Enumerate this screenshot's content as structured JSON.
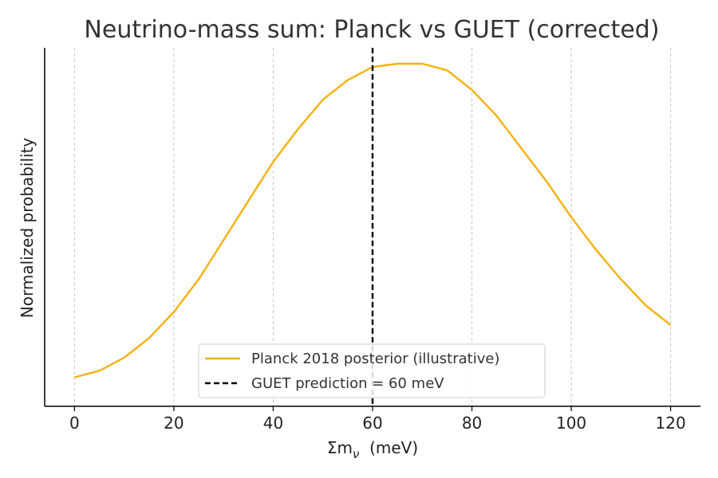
{
  "chart_data": {
    "type": "line",
    "title": "Neutrino-mass sum: Planck vs GUET (corrected)",
    "xlabel": "Σm",
    "xlabel_sub": "ν",
    "xlabel_unit": "(meV)",
    "ylabel": "Normalized probability",
    "xlim": [
      -6,
      126
    ],
    "ylim": [
      0,
      1.0
    ],
    "xticks": [
      "0",
      "20",
      "40",
      "60",
      "80",
      "100",
      "120"
    ],
    "x_tick_values": [
      0,
      20,
      40,
      60,
      80,
      100,
      120
    ],
    "grid": "vertical dashed",
    "legend_position": "bottom-center",
    "series": [
      {
        "name": "Planck 2018 posterior (illustrative)",
        "style": "solid",
        "color": "#f5b10f",
        "x": [
          0,
          5,
          10,
          15,
          20,
          25,
          30,
          35,
          40,
          45,
          50,
          55,
          60,
          65,
          70,
          75,
          80,
          85,
          90,
          95,
          100,
          105,
          110,
          115,
          120
        ],
        "y": [
          0.04,
          0.06,
          0.1,
          0.16,
          0.24,
          0.34,
          0.46,
          0.58,
          0.7,
          0.8,
          0.89,
          0.95,
          0.99,
          1.0,
          1.0,
          0.98,
          0.92,
          0.84,
          0.74,
          0.64,
          0.53,
          0.43,
          0.34,
          0.26,
          0.2
        ]
      },
      {
        "name": "GUET prediction = 60 meV",
        "style": "dashed",
        "color": "#000000",
        "x": [
          60,
          60
        ],
        "y": [
          0,
          1.0
        ]
      }
    ]
  }
}
